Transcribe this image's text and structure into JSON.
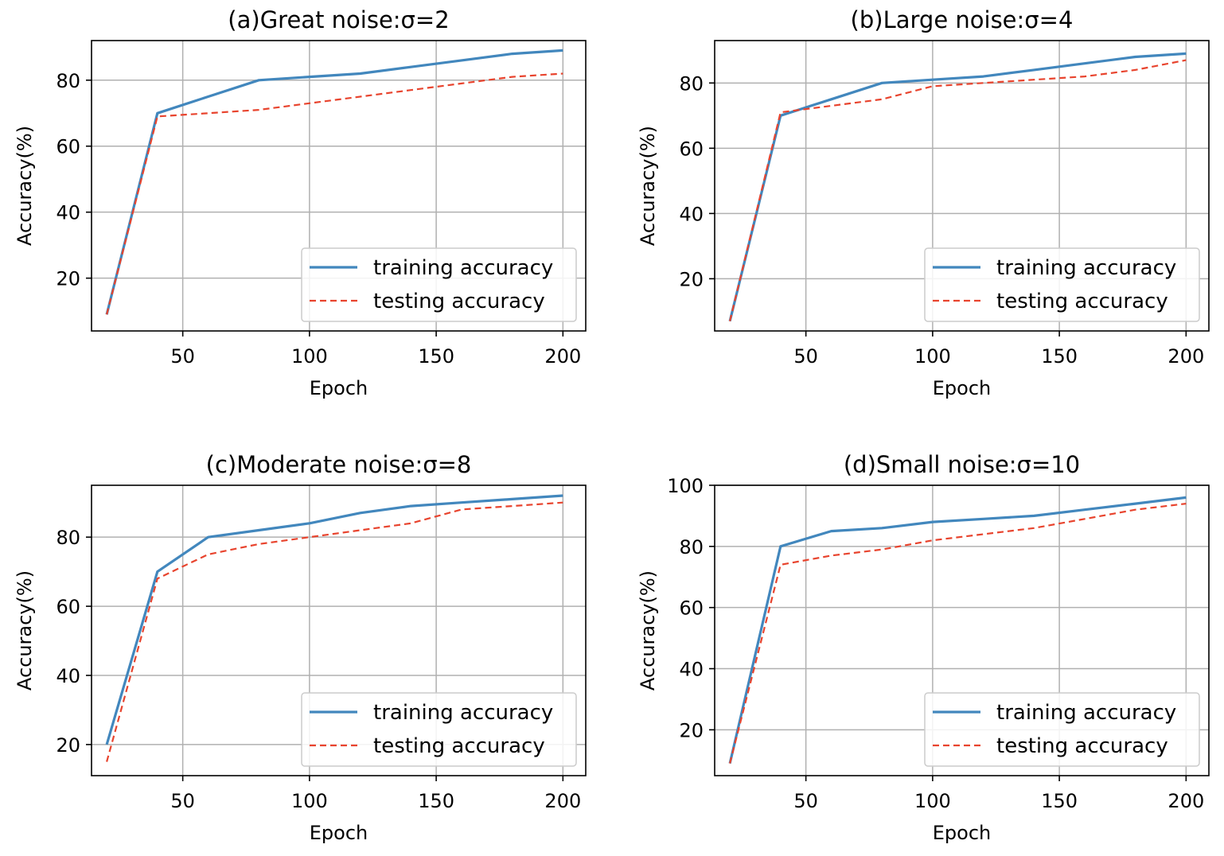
{
  "chart_data": [
    {
      "type": "line",
      "title": "(a)Great noise:σ=2",
      "xlabel": "Epoch",
      "ylabel": "Accuracy(%)",
      "xlim": [
        14,
        209
      ],
      "ylim": [
        4,
        92
      ],
      "xticks": [
        50,
        100,
        150,
        200
      ],
      "yticks": [
        20,
        40,
        60,
        80
      ],
      "grid": true,
      "legend_position": "lower-right",
      "series": [
        {
          "name": "training accuracy",
          "color": "#4287bd",
          "style": "solid",
          "x": [
            20,
            40,
            60,
            80,
            100,
            120,
            140,
            160,
            180,
            200
          ],
          "y": [
            9,
            70,
            75,
            80,
            81,
            82,
            84,
            86,
            88,
            89
          ]
        },
        {
          "name": "testing accuracy",
          "color": "#e8442e",
          "style": "dashed",
          "x": [
            20,
            40,
            60,
            80,
            100,
            120,
            140,
            160,
            180,
            200
          ],
          "y": [
            9,
            69,
            70,
            71,
            73,
            75,
            77,
            79,
            81,
            82
          ]
        }
      ]
    },
    {
      "type": "line",
      "title": "(b)Large noise:σ=4",
      "xlabel": "Epoch",
      "ylabel": "Accuracy(%)",
      "xlim": [
        14,
        209
      ],
      "ylim": [
        4,
        93
      ],
      "xticks": [
        50,
        100,
        150,
        200
      ],
      "yticks": [
        20,
        40,
        60,
        80
      ],
      "grid": true,
      "legend_position": "lower-right",
      "series": [
        {
          "name": "training accuracy",
          "color": "#4287bd",
          "style": "solid",
          "x": [
            20,
            40,
            60,
            80,
            100,
            120,
            140,
            160,
            180,
            200
          ],
          "y": [
            7,
            70,
            75,
            80,
            81,
            82,
            84,
            86,
            88,
            89
          ]
        },
        {
          "name": "testing accuracy",
          "color": "#e8442e",
          "style": "dashed",
          "x": [
            20,
            40,
            60,
            80,
            100,
            120,
            140,
            160,
            180,
            200
          ],
          "y": [
            7,
            71,
            73,
            75,
            79,
            80,
            81,
            82,
            84,
            87
          ]
        }
      ]
    },
    {
      "type": "line",
      "title": "(c)Moderate noise:σ=8",
      "xlabel": "Epoch",
      "ylabel": "Accuracy(%)",
      "xlim": [
        14,
        209
      ],
      "ylim": [
        11,
        95
      ],
      "xticks": [
        50,
        100,
        150,
        200
      ],
      "yticks": [
        20,
        40,
        60,
        80
      ],
      "grid": true,
      "legend_position": "lower-right",
      "series": [
        {
          "name": "training accuracy",
          "color": "#4287bd",
          "style": "solid",
          "x": [
            20,
            40,
            60,
            80,
            100,
            120,
            140,
            160,
            180,
            200
          ],
          "y": [
            20,
            70,
            80,
            82,
            84,
            87,
            89,
            90,
            91,
            92
          ]
        },
        {
          "name": "testing accuracy",
          "color": "#e8442e",
          "style": "dashed",
          "x": [
            20,
            40,
            60,
            80,
            100,
            120,
            140,
            160,
            180,
            200
          ],
          "y": [
            15,
            68,
            75,
            78,
            80,
            82,
            84,
            88,
            89,
            90
          ]
        }
      ]
    },
    {
      "type": "line",
      "title": "(d)Small noise:σ=10",
      "xlabel": "Epoch",
      "ylabel": "Accuracy(%)",
      "xlim": [
        14,
        209
      ],
      "ylim": [
        5,
        100
      ],
      "xticks": [
        50,
        100,
        150,
        200
      ],
      "yticks": [
        20,
        40,
        60,
        80,
        100
      ],
      "grid": true,
      "legend_position": "lower-right",
      "series": [
        {
          "name": "training accuracy",
          "color": "#4287bd",
          "style": "solid",
          "x": [
            20,
            40,
            60,
            80,
            100,
            120,
            140,
            160,
            180,
            200
          ],
          "y": [
            9,
            80,
            85,
            86,
            88,
            89,
            90,
            92,
            94,
            96
          ]
        },
        {
          "name": "testing accuracy",
          "color": "#e8442e",
          "style": "dashed",
          "x": [
            20,
            40,
            60,
            80,
            100,
            120,
            140,
            160,
            180,
            200
          ],
          "y": [
            9,
            74,
            77,
            79,
            82,
            84,
            86,
            89,
            92,
            94
          ]
        }
      ]
    }
  ]
}
